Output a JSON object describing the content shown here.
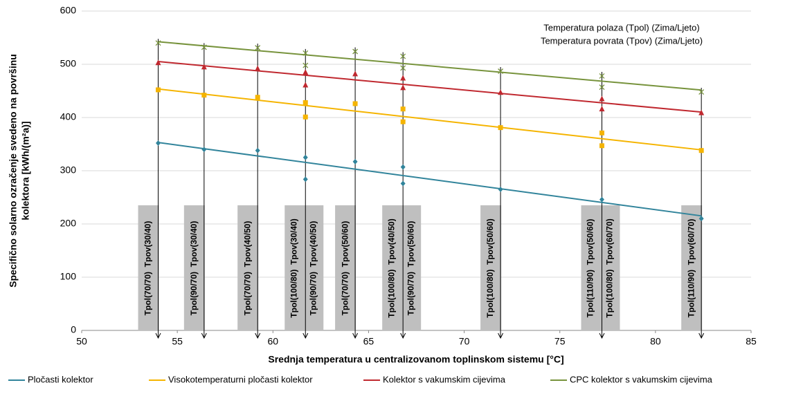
{
  "chart_data": {
    "type": "scatter",
    "y_label": [
      "Specifično solarno ozračenje svedeno na površinu",
      "kolektora [kWh/(m²a)]"
    ],
    "x_label": "Srednja temperatura u centralizovanom toplinskom sistemu [°C]",
    "notes": [
      "Temperatura polaza (Tpol) (Zima/Ljeto)",
      "Temperatura povrata (Tpov) (Zima/Ljeto)"
    ],
    "xlim": [
      50,
      85
    ],
    "xticks": [
      50,
      55,
      60,
      65,
      70,
      75,
      80,
      85
    ],
    "ylim": [
      0,
      600
    ],
    "yticks": [
      0,
      100,
      200,
      300,
      400,
      500,
      600
    ],
    "grid": true,
    "trendline": "linear",
    "legend": "bottom",
    "x": [
      54,
      56.4,
      59.2,
      61.7,
      61.7,
      64.3,
      66.8,
      66.8,
      71.9,
      77.2,
      77.2,
      82.4
    ],
    "series": [
      {
        "name": "Pločasti kolektor",
        "color": "#31849b",
        "marker": "diamond",
        "values": [
          352,
          340,
          338,
          325,
          284,
          317,
          307,
          276,
          265,
          246,
          null,
          210
        ]
      },
      {
        "name": "Visokotemperaturni pločasti kolektor",
        "color": "#f5b400",
        "marker": "square",
        "values": [
          452,
          442,
          438,
          428,
          401,
          426,
          416,
          392,
          381,
          371,
          347,
          338
        ]
      },
      {
        "name": "Kolektor s vakumskim cijevima",
        "color": "#c0282f",
        "marker": "triangle",
        "values": [
          503,
          495,
          492,
          485,
          461,
          482,
          474,
          456,
          447,
          435,
          416,
          409
        ]
      },
      {
        "name": "CPC kolektor s vakumskim cijevima",
        "color": "#77933c",
        "marker": "x",
        "values": [
          540,
          532,
          531,
          521,
          498,
          524,
          515,
          493,
          487,
          478,
          457,
          448
        ]
      }
    ],
    "annotations": [
      {
        "x": 54,
        "lines": [
          "Tpol(70/70)  Tpov(30/40)"
        ]
      },
      {
        "x": 56.4,
        "lines": [
          "Tpol(90/70)  Tpov(30/40)"
        ]
      },
      {
        "x": 59.2,
        "lines": [
          "Tpol(70/70)  Tpov(40/50)"
        ]
      },
      {
        "x": 61.7,
        "lines": [
          "Tpol(100/80)  Tpov(30/40)",
          "Tpol(90/70)  Tpov(40/50)"
        ]
      },
      {
        "x": 64.3,
        "lines": [
          "Tpol(70/70)  Tpov(50/60)"
        ]
      },
      {
        "x": 66.8,
        "lines": [
          "Tpol(100/80)  Tpov(40/50)",
          "Tpol(90/70)  Tpov(50/60)"
        ]
      },
      {
        "x": 71.9,
        "lines": [
          "Tpol(100/80)  Tpov(50/60)"
        ]
      },
      {
        "x": 77.2,
        "lines": [
          "Tpol(110/90)  Tpov(50/60)",
          "Tpol(100/80)  Tpov(60/70)"
        ]
      },
      {
        "x": 82.4,
        "lines": [
          "Tpol(110/90)  Tpov(60/70)"
        ]
      }
    ]
  }
}
